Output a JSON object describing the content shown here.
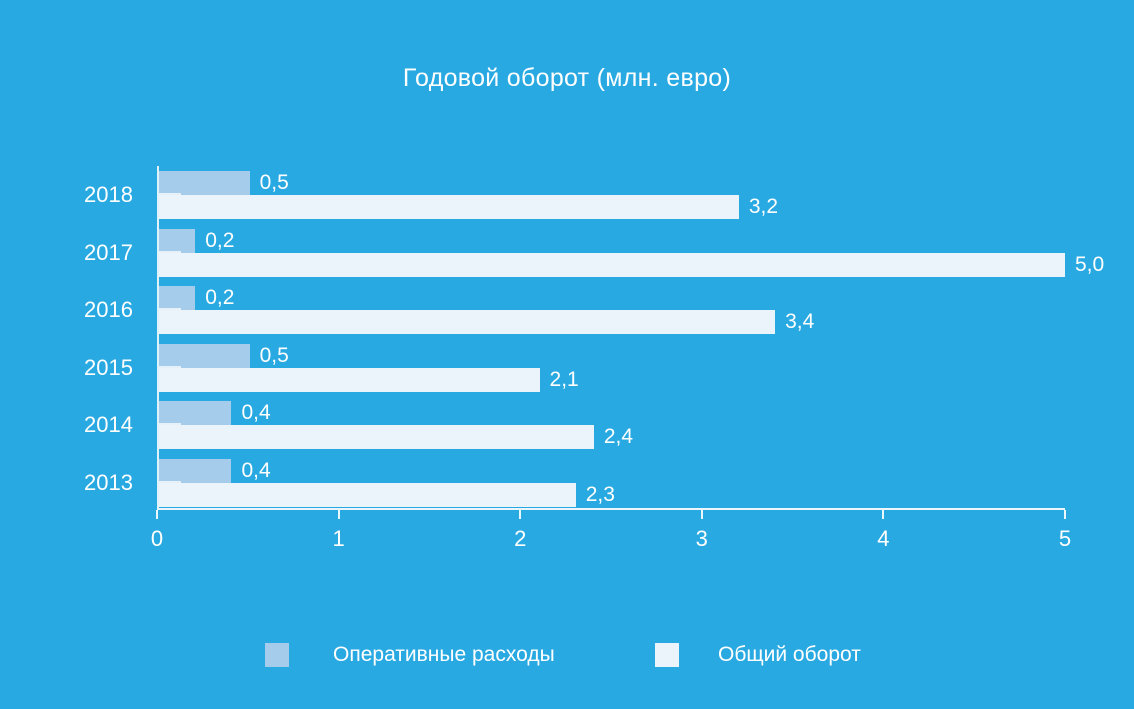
{
  "chart_data": {
    "type": "bar",
    "orientation": "horizontal",
    "title": "Годовой оборот (млн. евро)",
    "categories": [
      "2018",
      "2017",
      "2016",
      "2015",
      "2014",
      "2013"
    ],
    "series": [
      {
        "name": "Оперативные расходы",
        "color": "#a5cdeb",
        "values": [
          0.5,
          0.2,
          0.2,
          0.5,
          0.4,
          0.4
        ],
        "labels": [
          "0,5",
          "0,2",
          "0,2",
          "0,5",
          "0,4",
          "0,4"
        ]
      },
      {
        "name": "Общий оборот",
        "color": "#ecf4fb",
        "values": [
          3.2,
          5.0,
          3.4,
          2.1,
          2.4,
          2.3
        ],
        "labels": [
          "3,2",
          "5,0",
          "3,4",
          "2,1",
          "2,4",
          "2,3"
        ]
      }
    ],
    "x_axis": {
      "min": 0,
      "max": 5,
      "ticks": [
        "0",
        "1",
        "2",
        "3",
        "4",
        "5"
      ]
    },
    "legend_position": "bottom",
    "grid": false,
    "colors": {
      "background": "#29a9e1",
      "axis": "#ffffff",
      "text": "#ffffff"
    }
  }
}
